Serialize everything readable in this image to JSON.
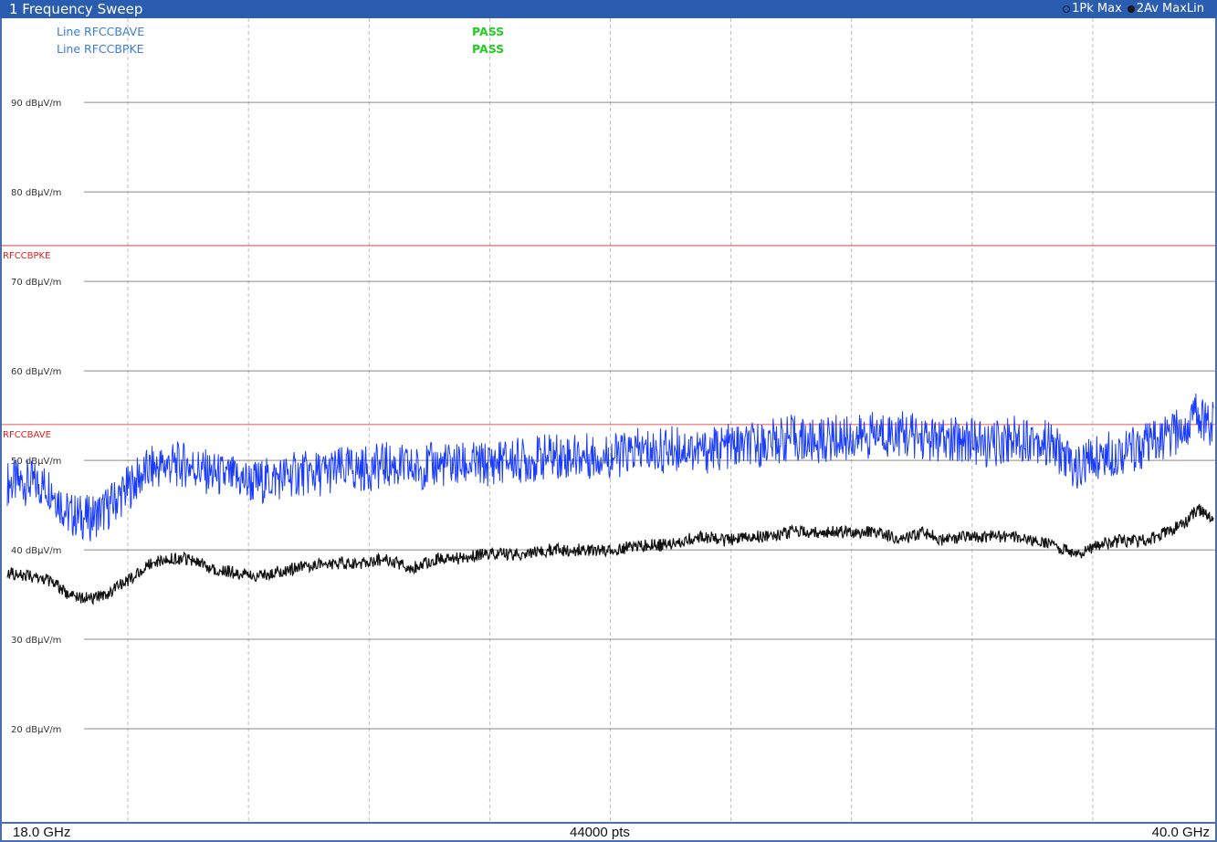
{
  "window": {
    "title": "1 Frequency Sweep",
    "traces": [
      {
        "label": "1Pk Max",
        "marker": "hollow-circle-icon"
      },
      {
        "label": "2Av MaxLin",
        "marker": "filled-circle-icon"
      }
    ]
  },
  "footer": {
    "start": "18.0 GHz",
    "points": "44000 pts",
    "stop": "40.0 GHz"
  },
  "colors": {
    "titlebar": "#2a5db0",
    "trace_peak": "#1a3cff",
    "trace_avg": "#111111",
    "limit": "#e02020",
    "pass": "#22cc22",
    "linecheck_text": "#3a7be0"
  },
  "chart_data": {
    "type": "line",
    "xlabel": "",
    "ylabel": "",
    "xlim": [
      18.0,
      40.0
    ],
    "x_unit": "GHz",
    "ylim": [
      10,
      99
    ],
    "y_unit": "dBµV/m",
    "grid": true,
    "y_ticks": [
      {
        "value": 90,
        "label": "90 dBµV/m"
      },
      {
        "value": 80,
        "label": "80 dBµV/m"
      },
      {
        "value": 70,
        "label": "70 dBµV/m"
      },
      {
        "value": 60,
        "label": "60 dBµV/m"
      },
      {
        "value": 50,
        "label": "50 dBµV/m"
      },
      {
        "value": 40,
        "label": "40 dBµV/m"
      },
      {
        "value": 30,
        "label": "30 dBµV/m"
      },
      {
        "value": 20,
        "label": "20 dBµV/m"
      }
    ],
    "limit_lines": [
      {
        "name": "RFCCBPKE",
        "value": 74
      },
      {
        "name": "RFCCBAVE",
        "value": 54
      }
    ],
    "line_checks": [
      {
        "label": "Line RFCCBAVE",
        "result": "PASS"
      },
      {
        "label": "Line RFCCBPKE",
        "result": "PASS"
      }
    ],
    "series": [
      {
        "trace": "1Pk Max",
        "x": [
          18.0,
          18.4,
          18.8,
          19.1,
          19.5,
          19.8,
          20.3,
          20.6,
          20.9,
          21.3,
          21.7,
          22.1,
          22.5,
          22.9,
          23.3,
          23.7,
          24.1,
          24.5,
          24.9,
          25.4,
          25.8,
          26.2,
          26.7,
          27.1,
          27.5,
          27.9,
          28.3,
          28.7,
          29.1,
          29.5,
          29.9,
          30.3,
          30.7,
          31.1,
          31.5,
          31.9,
          32.3,
          32.7,
          33.1,
          33.5,
          33.9,
          34.3,
          34.7,
          35.1,
          35.5,
          35.9,
          36.3,
          36.7,
          37.1,
          37.5,
          37.9,
          38.3,
          38.7,
          39.0,
          39.3,
          39.5,
          39.7,
          39.85,
          40.0
        ],
        "y": [
          47.5,
          47.5,
          47.0,
          44.0,
          43.5,
          44.5,
          47.5,
          49.0,
          49.5,
          49.5,
          48.5,
          48.0,
          47.5,
          48.0,
          48.5,
          48.5,
          49.0,
          49.0,
          49.5,
          49.0,
          49.5,
          49.5,
          49.5,
          50.0,
          50.0,
          50.5,
          50.5,
          50.5,
          50.5,
          51.0,
          51.0,
          51.5,
          51.0,
          51.5,
          51.5,
          52.0,
          52.5,
          52.0,
          52.5,
          52.5,
          53.0,
          53.0,
          52.5,
          52.0,
          52.5,
          51.5,
          52.5,
          52.5,
          51.5,
          49.0,
          50.5,
          51.0,
          51.5,
          52.0,
          53.0,
          53.5,
          55.5,
          54.5,
          54.0
        ]
      },
      {
        "trace": "2Av MaxLin",
        "x": [
          18.0,
          18.4,
          18.8,
          19.1,
          19.5,
          19.8,
          20.3,
          20.6,
          20.9,
          21.3,
          21.7,
          22.1,
          22.5,
          22.9,
          23.3,
          23.7,
          24.1,
          24.5,
          24.9,
          25.4,
          25.8,
          26.2,
          26.7,
          27.1,
          27.5,
          27.9,
          28.3,
          28.7,
          29.1,
          29.5,
          29.9,
          30.3,
          30.7,
          31.1,
          31.5,
          31.9,
          32.3,
          32.7,
          33.1,
          33.5,
          33.9,
          34.3,
          34.7,
          35.1,
          35.5,
          35.9,
          36.3,
          36.7,
          37.1,
          37.5,
          37.9,
          38.3,
          38.7,
          39.0,
          39.3,
          39.5,
          39.7,
          39.85,
          40.0
        ],
        "y": [
          37.5,
          37.0,
          36.5,
          35.0,
          34.5,
          35.0,
          37.0,
          38.5,
          39.0,
          39.0,
          38.0,
          37.5,
          37.0,
          37.5,
          38.0,
          38.5,
          38.5,
          38.5,
          39.0,
          38.0,
          39.0,
          39.0,
          39.5,
          39.5,
          39.5,
          40.0,
          40.0,
          40.0,
          40.0,
          40.5,
          40.5,
          41.0,
          41.5,
          41.0,
          41.5,
          41.5,
          42.0,
          42.0,
          42.0,
          42.0,
          42.0,
          41.0,
          42.0,
          41.0,
          41.5,
          41.5,
          41.5,
          41.0,
          40.5,
          39.5,
          40.5,
          41.0,
          41.0,
          41.5,
          42.5,
          43.0,
          44.5,
          44.0,
          43.5
        ]
      }
    ]
  }
}
